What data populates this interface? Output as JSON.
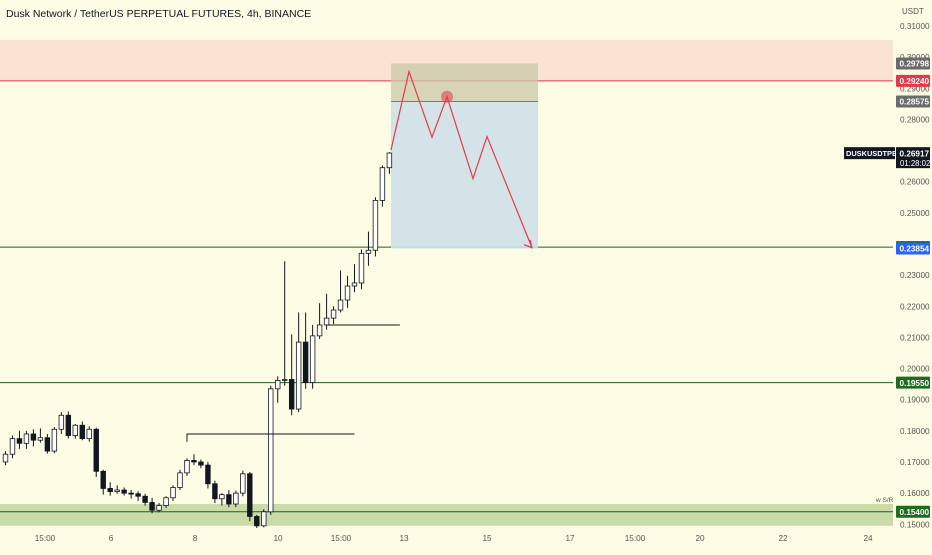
{
  "chart_title": "Dusk Network / TetherUS PERPETUAL FUTURES, 4h, BINANCE",
  "colors": {
    "background": "#fdfce4",
    "bull_body": "#ffffff",
    "bear_body": "#131722",
    "wick": "#131722",
    "resistance_zone": "#f9e3d3",
    "support_zone": "#c9dca8",
    "level_line": "#1f5e1f",
    "red_line": "#e5394a",
    "stop_zone": "#c8c8a8",
    "target_zone": "#cfe0e8",
    "projection": "#e5394a"
  },
  "chart_data": {
    "type": "candlestick",
    "title": "Dusk Network / TetherUS PERPETUAL FUTURES, 4h, BINANCE",
    "unit": "USDT",
    "symbol": "DUSKUSDTPERP",
    "ylim": [
      0.1488,
      0.3145
    ],
    "y_ticks": [
      "0.31000",
      "0.30000",
      "0.29000",
      "0.28000",
      "0.27000",
      "0.26000",
      "0.25000",
      "0.24000",
      "0.23000",
      "0.22000",
      "0.21000",
      "0.20000",
      "0.19000",
      "0.18000",
      "0.17000",
      "0.16000",
      "0.15000"
    ],
    "x_ticks": [
      "15:00",
      "6",
      "8",
      "10",
      "15:00",
      "13",
      "15",
      "17",
      "15:00",
      "20",
      "22",
      "24"
    ],
    "price_labels": [
      {
        "text": "0.29798",
        "price": 0.29798,
        "color": "#6b6b6b"
      },
      {
        "text": "0.29240",
        "price": 0.2924,
        "color": "#e5394a"
      },
      {
        "text": "0.28575",
        "price": 0.28575,
        "color": "#6b6b6b"
      },
      {
        "text": "0.23900",
        "price": 0.239,
        "color": "#1f6b1f"
      },
      {
        "text": "0.23854",
        "price": 0.23854,
        "color": "#2962ff"
      },
      {
        "text": "0.19550",
        "price": 0.1955,
        "color": "#1f6b1f"
      },
      {
        "text": "0.15400",
        "price": 0.154,
        "color": "#1f6b1f"
      }
    ],
    "last_price": {
      "symbol": "DUSKUSDTPERP",
      "price": "0.26917",
      "countdown": "01:28:02"
    },
    "levels": [
      {
        "price": 0.239,
        "color": "#1f5e1f"
      },
      {
        "price": 0.1955,
        "color": "#1f5e1f"
      },
      {
        "price": 0.154,
        "color": "#1f5e1f"
      },
      {
        "price": 0.2924,
        "color": "#e5394a"
      }
    ],
    "zones": [
      {
        "name": "resistance",
        "from": 0.2924,
        "to": 0.3055
      },
      {
        "name": "support",
        "from": 0.1495,
        "to": 0.1565
      }
    ],
    "position": {
      "entry": 0.28575,
      "stop": 0.29798,
      "target": 0.23854
    },
    "annotation": "w S/R",
    "candles": [
      [
        0.17,
        0.1735,
        0.169,
        0.1725
      ],
      [
        0.1725,
        0.1785,
        0.1712,
        0.1775
      ],
      [
        0.1775,
        0.18,
        0.1742,
        0.176
      ],
      [
        0.176,
        0.18,
        0.1742,
        0.179
      ],
      [
        0.179,
        0.1805,
        0.175,
        0.177
      ],
      [
        0.177,
        0.1808,
        0.1762,
        0.1778
      ],
      [
        0.1778,
        0.179,
        0.1727,
        0.1735
      ],
      [
        0.1735,
        0.1812,
        0.1728,
        0.1805
      ],
      [
        0.1805,
        0.186,
        0.179,
        0.185
      ],
      [
        0.185,
        0.1862,
        0.1775,
        0.1785
      ],
      [
        0.1785,
        0.1822,
        0.1775,
        0.1818
      ],
      [
        0.1818,
        0.183,
        0.177,
        0.1775
      ],
      [
        0.1775,
        0.1815,
        0.1765,
        0.1805
      ],
      [
        0.1805,
        0.181,
        0.1652,
        0.167
      ],
      [
        0.167,
        0.1675,
        0.1595,
        0.1615
      ],
      [
        0.1615,
        0.1635,
        0.1592,
        0.1605
      ],
      [
        0.1605,
        0.1625,
        0.1598,
        0.161
      ],
      [
        0.161,
        0.1618,
        0.1592,
        0.16
      ],
      [
        0.16,
        0.161,
        0.1582,
        0.1598
      ],
      [
        0.1598,
        0.1606,
        0.1575,
        0.159
      ],
      [
        0.159,
        0.1598,
        0.156,
        0.157
      ],
      [
        0.157,
        0.1585,
        0.1535,
        0.1545
      ],
      [
        0.1545,
        0.1568,
        0.1538,
        0.156
      ],
      [
        0.156,
        0.159,
        0.1552,
        0.1585
      ],
      [
        0.1585,
        0.1625,
        0.1575,
        0.1618
      ],
      [
        0.1618,
        0.1675,
        0.161,
        0.1665
      ],
      [
        0.1665,
        0.1712,
        0.1655,
        0.1705
      ],
      [
        0.1705,
        0.1725,
        0.169,
        0.17
      ],
      [
        0.17,
        0.1708,
        0.168,
        0.169
      ],
      [
        0.169,
        0.17,
        0.1615,
        0.163
      ],
      [
        0.163,
        0.164,
        0.1568,
        0.1582
      ],
      [
        0.1582,
        0.16,
        0.156,
        0.1595
      ],
      [
        0.1595,
        0.161,
        0.1555,
        0.1565
      ],
      [
        0.1565,
        0.1608,
        0.1555,
        0.16
      ],
      [
        0.16,
        0.1672,
        0.159,
        0.1662
      ],
      [
        0.1662,
        0.1668,
        0.151,
        0.1525
      ],
      [
        0.1525,
        0.153,
        0.1488,
        0.1495
      ],
      [
        0.1495,
        0.1548,
        0.149,
        0.154
      ],
      [
        0.154,
        0.1945,
        0.153,
        0.1935
      ],
      [
        0.1935,
        0.1975,
        0.189,
        0.1962
      ],
      [
        0.1962,
        0.2345,
        0.1945,
        0.1965
      ],
      [
        0.1965,
        0.211,
        0.185,
        0.187
      ],
      [
        0.187,
        0.218,
        0.186,
        0.2085
      ],
      [
        0.2085,
        0.218,
        0.1935,
        0.1955
      ],
      [
        0.1955,
        0.214,
        0.1935,
        0.2105
      ],
      [
        0.2105,
        0.221,
        0.2095,
        0.214
      ],
      [
        0.214,
        0.224,
        0.2125,
        0.2162
      ],
      [
        0.2162,
        0.22,
        0.2143,
        0.2188
      ],
      [
        0.2188,
        0.2315,
        0.218,
        0.222
      ],
      [
        0.222,
        0.2298,
        0.2195,
        0.2265
      ],
      [
        0.2265,
        0.2335,
        0.2245,
        0.2275
      ],
      [
        0.2275,
        0.2382,
        0.2255,
        0.237
      ],
      [
        0.237,
        0.244,
        0.233,
        0.238
      ],
      [
        0.238,
        0.255,
        0.236,
        0.254
      ],
      [
        0.254,
        0.2652,
        0.252,
        0.2645
      ],
      [
        0.2645,
        0.2695,
        0.2625,
        0.2692
      ]
    ],
    "projection_path": [
      {
        "price": 0.2702
      },
      {
        "price": 0.2954
      },
      {
        "price": 0.2743
      },
      {
        "price": 0.2873
      },
      {
        "price": 0.261
      },
      {
        "price": 0.2745
      },
      {
        "price": 0.2388
      }
    ]
  }
}
